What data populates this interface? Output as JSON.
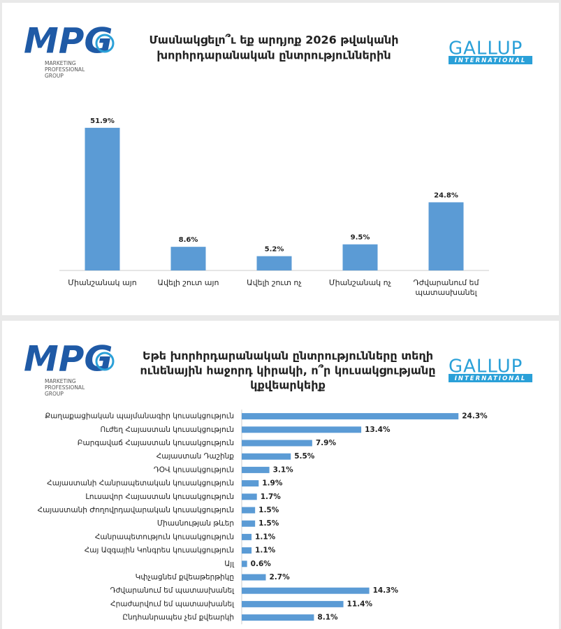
{
  "logos": {
    "mpg": "MPG",
    "mpg_caption": [
      "MARKETING",
      "PROFESSIONAL",
      "GROUP"
    ],
    "gallup": "GALLUP",
    "gallup_caption": "INTERNATIONAL"
  },
  "chart_data": [
    {
      "type": "bar",
      "title": [
        "Մասնակցելո՞ւ եք արդյոք 2026 թվականի",
        "խորհրդարանական ընտրություններին"
      ],
      "categories": [
        "Միանշանակ այո",
        "Ավելի շուտ այո",
        "Ավելի շուտ ոչ",
        "Միանշանակ ոչ",
        "Դժվարանում եմ պատասխանել"
      ],
      "values": [
        51.9,
        8.6,
        5.2,
        9.5,
        24.8
      ],
      "value_labels": [
        "51.9%",
        "8.6%",
        "5.2%",
        "9.5%",
        "24.8%"
      ],
      "color": "#5b9bd5",
      "ylim": [
        0,
        60
      ]
    },
    {
      "type": "barh",
      "title": [
        "Եթե խորհրդարանական ընտրությունները տեղի",
        "ունենային հաջորդ կիրակի, ո՞ր կուսակցությանը",
        "կքվեարկեիք"
      ],
      "categories": [
        "Քաղաքացիական պայմանագիր կուսակցություն",
        "Ուժեղ Հայաստան կուսակցություն",
        "Բարգավաճ Հայաստան կուսակցություն",
        "Հայաստան Դաշինք",
        "ԴՕՎ կուսակցություն",
        "Հայաստանի Հանրապետական կուսակցություն",
        "Լուսավոր Հայաստան կուսակցություն",
        "Հայաստանի Ժողովրդավարական կուսակցություն",
        "Միասնության թևեր",
        "Հանրապետություն կուսակցություն",
        "Հայ Ազգային Կոնգրես կուսակցություն",
        "Այլ",
        "Կփչացնեմ քվեաթերթիկը",
        "Դժվարանում եմ պատասխանել",
        "Հրաժարվում եմ պատասխանել",
        "Ընդհանրապես չեմ քվեարկի"
      ],
      "values": [
        24.3,
        13.4,
        7.9,
        5.5,
        3.1,
        1.9,
        1.7,
        1.5,
        1.5,
        1.1,
        1.1,
        0.6,
        2.7,
        14.3,
        11.4,
        8.1
      ],
      "value_labels": [
        "24.3%",
        "13.4%",
        "7.9%",
        "5.5%",
        "3.1%",
        "1.9%",
        "1.7%",
        "1.5%",
        "1.5%",
        "1.1%",
        "1.1%",
        "0.6%",
        "2.7%",
        "14.3%",
        "11.4%",
        "8.1%"
      ],
      "color": "#5b9bd5",
      "xlim": [
        0,
        30
      ]
    }
  ]
}
